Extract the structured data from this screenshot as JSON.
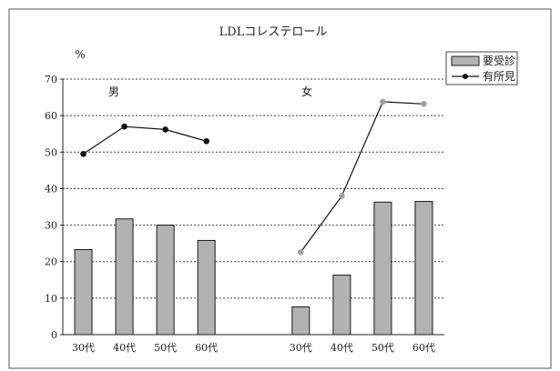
{
  "chart_data": {
    "type": "bar",
    "title": "LDLコレステロール",
    "ylabel": "%",
    "ylim": [
      0,
      70
    ],
    "yticks": [
      0,
      10,
      20,
      30,
      40,
      50,
      60,
      70
    ],
    "grid": true,
    "legend_position": "top-right",
    "groups": [
      {
        "label": "男",
        "categories": [
          "30代",
          "40代",
          "50代",
          "60代"
        ],
        "bar_values": [
          23.3,
          31.7,
          30.0,
          25.8
        ],
        "line_values": [
          49.5,
          57.0,
          56.2,
          53.0
        ]
      },
      {
        "label": "女",
        "categories": [
          "30代",
          "40代",
          "50代",
          "60代"
        ],
        "bar_values": [
          7.6,
          16.3,
          36.3,
          36.5
        ],
        "line_values": [
          22.6,
          38.0,
          63.8,
          63.2
        ]
      }
    ],
    "series": [
      {
        "name": "要受診",
        "kind": "bar",
        "color": "#b2b2b2"
      },
      {
        "name": "有所見",
        "kind": "line",
        "colors": [
          "#111111",
          "#a3a3a3"
        ]
      }
    ]
  }
}
